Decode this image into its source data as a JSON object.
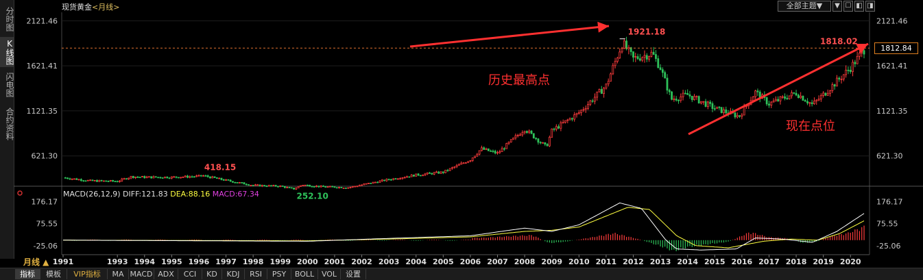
{
  "left_tabs": [
    "分时图",
    "K线图",
    "闪电图",
    "合约资料"
  ],
  "title": {
    "name": "现货黄金",
    "period": "<月线>"
  },
  "toolbar": {
    "theme_label": "全部主题▼",
    "buttons": [
      "▼",
      "☐",
      "◧",
      "◨",
      "✕"
    ]
  },
  "colors": {
    "up": "#ff3c3c",
    "down": "#2ec25a",
    "diff": "#ffffff",
    "dea": "#ffff40",
    "macd_label": "#e040e0",
    "annotation": "#ff3030",
    "guide_line": "#e07030"
  },
  "chart_data": {
    "type": "candlestick",
    "price_axis": {
      "ticks": [
        2121.46,
        1621.41,
        1121.35,
        621.3
      ],
      "tick_labels": [
        "2121.46",
        "1621.41",
        "1121.35",
        "621.30"
      ],
      "ylim": [
        300,
        2200
      ]
    },
    "x_axis": {
      "labels": [
        "1991",
        "1993",
        "1994",
        "1995",
        "1996",
        "1997",
        "1998",
        "1999",
        "2000",
        "2001",
        "2002",
        "2003",
        "2004",
        "2005",
        "2006",
        "2007",
        "2008",
        "2009",
        "2010",
        "2011",
        "2012",
        "2013",
        "2014",
        "2015",
        "2016",
        "2017",
        "2018",
        "2019",
        "2020"
      ],
      "xlim": [
        1991.0,
        2020.6
      ]
    },
    "series_close": [
      {
        "x": 1991.0,
        "y": 380
      },
      {
        "x": 1992.0,
        "y": 345
      },
      {
        "x": 1993.0,
        "y": 340
      },
      {
        "x": 1993.5,
        "y": 390
      },
      {
        "x": 1994.0,
        "y": 385
      },
      {
        "x": 1995.0,
        "y": 385
      },
      {
        "x": 1996.0,
        "y": 395
      },
      {
        "x": 1996.1,
        "y": 405
      },
      {
        "x": 1997.0,
        "y": 350
      },
      {
        "x": 1998.0,
        "y": 295
      },
      {
        "x": 1999.0,
        "y": 285
      },
      {
        "x": 1999.5,
        "y": 255
      },
      {
        "x": 1999.8,
        "y": 300
      },
      {
        "x": 2000.5,
        "y": 280
      },
      {
        "x": 2001.5,
        "y": 270
      },
      {
        "x": 2002.0,
        "y": 300
      },
      {
        "x": 2003.0,
        "y": 360
      },
      {
        "x": 2004.0,
        "y": 410
      },
      {
        "x": 2005.0,
        "y": 440
      },
      {
        "x": 2006.0,
        "y": 580
      },
      {
        "x": 2006.4,
        "y": 700
      },
      {
        "x": 2007.0,
        "y": 650
      },
      {
        "x": 2008.0,
        "y": 920
      },
      {
        "x": 2008.8,
        "y": 720
      },
      {
        "x": 2009.0,
        "y": 900
      },
      {
        "x": 2010.0,
        "y": 1100
      },
      {
        "x": 2011.0,
        "y": 1400
      },
      {
        "x": 2011.6,
        "y": 1880
      },
      {
        "x": 2012.0,
        "y": 1700
      },
      {
        "x": 2012.7,
        "y": 1760
      },
      {
        "x": 2013.0,
        "y": 1600
      },
      {
        "x": 2013.4,
        "y": 1250
      },
      {
        "x": 2014.0,
        "y": 1300
      },
      {
        "x": 2015.0,
        "y": 1150
      },
      {
        "x": 2015.9,
        "y": 1060
      },
      {
        "x": 2016.5,
        "y": 1330
      },
      {
        "x": 2017.0,
        "y": 1200
      },
      {
        "x": 2018.0,
        "y": 1320
      },
      {
        "x": 2018.6,
        "y": 1190
      },
      {
        "x": 2019.0,
        "y": 1300
      },
      {
        "x": 2019.5,
        "y": 1450
      },
      {
        "x": 2020.0,
        "y": 1600
      },
      {
        "x": 2020.5,
        "y": 1800
      }
    ],
    "annotations": {
      "high": {
        "x": 2011.6,
        "value": "1921.18"
      },
      "recent_high": {
        "x": 2020.55,
        "value": "1818.02"
      },
      "peak_1996": {
        "x": 1996.1,
        "value": "418.15"
      },
      "low_1999": {
        "x": 1999.6,
        "value": "252.10"
      },
      "text_high": "历史最高点",
      "text_now": "现在点位",
      "current_price": "1812.84"
    },
    "macd": {
      "label": "MACD(26,12,9)",
      "diff_label": "DIFF:121.83",
      "dea_label": "DEA:88.16",
      "macd_label": "MACD:67.34",
      "ticks": [
        "176.17",
        "75.55",
        "-25.06"
      ],
      "ylim": [
        -60,
        190
      ],
      "diff": [
        {
          "x": 1991,
          "y": 0
        },
        {
          "x": 2000,
          "y": -5
        },
        {
          "x": 2003,
          "y": 8
        },
        {
          "x": 2006,
          "y": 20
        },
        {
          "x": 2008,
          "y": 55
        },
        {
          "x": 2009,
          "y": 40
        },
        {
          "x": 2010,
          "y": 70
        },
        {
          "x": 2011.5,
          "y": 170
        },
        {
          "x": 2012.3,
          "y": 145
        },
        {
          "x": 2013.2,
          "y": 0
        },
        {
          "x": 2013.6,
          "y": -40
        },
        {
          "x": 2014.5,
          "y": -45
        },
        {
          "x": 2015.8,
          "y": -40
        },
        {
          "x": 2016.5,
          "y": 10
        },
        {
          "x": 2017.5,
          "y": 5
        },
        {
          "x": 2018.6,
          "y": -10
        },
        {
          "x": 2019.5,
          "y": 40
        },
        {
          "x": 2020.5,
          "y": 121.83
        }
      ],
      "dea": [
        {
          "x": 1991,
          "y": 0
        },
        {
          "x": 2000,
          "y": -3
        },
        {
          "x": 2003,
          "y": 5
        },
        {
          "x": 2006,
          "y": 15
        },
        {
          "x": 2008,
          "y": 40
        },
        {
          "x": 2009,
          "y": 45
        },
        {
          "x": 2010,
          "y": 60
        },
        {
          "x": 2011.8,
          "y": 150
        },
        {
          "x": 2012.6,
          "y": 140
        },
        {
          "x": 2013.6,
          "y": 20
        },
        {
          "x": 2014.3,
          "y": -25
        },
        {
          "x": 2015.5,
          "y": -35
        },
        {
          "x": 2016.8,
          "y": -5
        },
        {
          "x": 2017.8,
          "y": 5
        },
        {
          "x": 2018.8,
          "y": 0
        },
        {
          "x": 2019.6,
          "y": 30
        },
        {
          "x": 2020.5,
          "y": 88.16
        }
      ],
      "hist": [
        {
          "x": 2006.5,
          "y": 12
        },
        {
          "x": 2007.5,
          "y": 20
        },
        {
          "x": 2008.3,
          "y": 25
        },
        {
          "x": 2008.9,
          "y": -15
        },
        {
          "x": 2009.5,
          "y": -8
        },
        {
          "x": 2010.5,
          "y": 15
        },
        {
          "x": 2011.3,
          "y": 35
        },
        {
          "x": 2012.2,
          "y": 5
        },
        {
          "x": 2013.0,
          "y": -30
        },
        {
          "x": 2013.5,
          "y": -55
        },
        {
          "x": 2014.0,
          "y": -35
        },
        {
          "x": 2014.8,
          "y": -20
        },
        {
          "x": 2015.5,
          "y": -8
        },
        {
          "x": 2016.3,
          "y": 40
        },
        {
          "x": 2017.0,
          "y": 15
        },
        {
          "x": 2017.6,
          "y": 10
        },
        {
          "x": 2018.3,
          "y": -15
        },
        {
          "x": 2018.8,
          "y": -5
        },
        {
          "x": 2019.3,
          "y": 20
        },
        {
          "x": 2019.9,
          "y": 35
        },
        {
          "x": 2020.5,
          "y": 67.34
        }
      ]
    }
  },
  "bottom_tabs": [
    "指标",
    "模板",
    "VIP指标",
    "MA",
    "MACD",
    "ADX",
    "CCI",
    "KD",
    "KDJ",
    "RSI",
    "PSY",
    "BOLL",
    "VOL",
    "设置"
  ],
  "period_label": "月线 ▲"
}
